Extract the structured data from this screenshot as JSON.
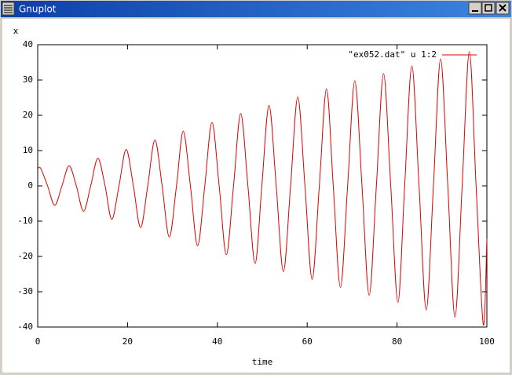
{
  "window": {
    "title": "Gnuplot"
  },
  "chart_data": {
    "type": "line",
    "xlabel": "time",
    "ylabel": "x",
    "xlim": [
      0,
      100
    ],
    "ylim": [
      -40,
      40
    ],
    "xticks": [
      0,
      20,
      40,
      60,
      80,
      100
    ],
    "yticks": [
      -40,
      -30,
      -20,
      -10,
      0,
      10,
      20,
      30,
      40
    ],
    "legend": "top-right",
    "series": [
      {
        "name": "\"ex052.dat\"  u 1:2",
        "color": "#e00000",
        "x": [
          0,
          0.65,
          2.2,
          3.8,
          5.4,
          7.0,
          8.6,
          10.2,
          11.8,
          13.4,
          15.0,
          16.5,
          18.1,
          19.7,
          21.3,
          22.9,
          24.5,
          26.1,
          27.7,
          29.3,
          30.9,
          32.4,
          34.0,
          35.6,
          37.2,
          38.8,
          40.4,
          42.0,
          43.6,
          45.2,
          46.8,
          48.4,
          49.9,
          51.5,
          53.1,
          54.7,
          56.3,
          57.9,
          59.5,
          61.1,
          62.7,
          64.3,
          65.8,
          67.4,
          69.0,
          70.6,
          72.2,
          73.8,
          75.4,
          77.0,
          78.6,
          80.2,
          81.7,
          83.3,
          84.9,
          86.5,
          88.1,
          89.7,
          91.3,
          92.9,
          94.5,
          96.1,
          97.6,
          99.2,
          100
        ],
        "values": [
          4.8,
          5,
          0,
          -5.5,
          0,
          5.7,
          0,
          -7.2,
          0,
          7.8,
          0,
          -9.5,
          0,
          10.3,
          0,
          -11.8,
          0,
          13,
          0,
          -14.5,
          0,
          15.5,
          0,
          -17,
          0,
          18,
          0,
          -19.5,
          0,
          20.5,
          0,
          -22,
          0,
          22.8,
          0,
          -24.3,
          0,
          25.2,
          0,
          -26.5,
          0,
          27.5,
          0,
          -28.8,
          0,
          29.8,
          0,
          -31,
          0,
          31.8,
          0,
          -33,
          0,
          34,
          0,
          -35.2,
          0,
          36,
          0,
          -37.2,
          0,
          38,
          0,
          -39.3,
          -15
        ]
      }
    ]
  }
}
